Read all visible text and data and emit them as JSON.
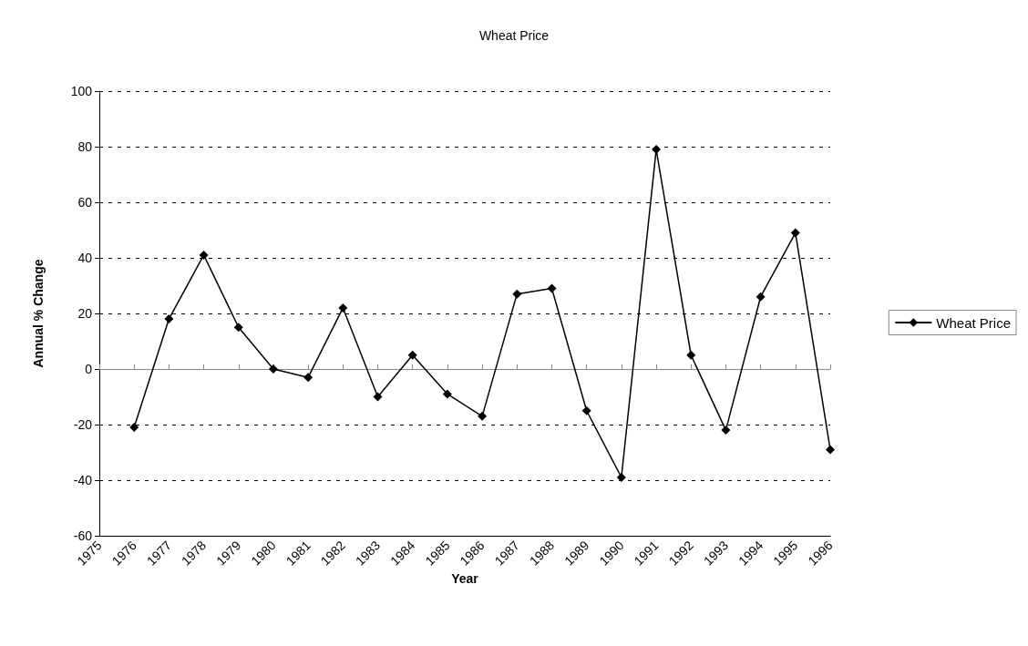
{
  "chart_data": {
    "type": "line",
    "title": "Wheat Price",
    "xlabel": "Year",
    "ylabel": "Annual % Change",
    "categories": [
      "1975",
      "1976",
      "1977",
      "1978",
      "1979",
      "1980",
      "1981",
      "1982",
      "1983",
      "1984",
      "1985",
      "1986",
      "1987",
      "1988",
      "1989",
      "1990",
      "1991",
      "1992",
      "1993",
      "1994",
      "1995",
      "1996"
    ],
    "series": [
      {
        "name": "Wheat Price",
        "color": "#000000",
        "values": [
          null,
          -21,
          18,
          41,
          15,
          0,
          -3,
          22,
          -10,
          5,
          -9,
          -17,
          27,
          29,
          -15,
          -39,
          79,
          5,
          -22,
          26,
          49,
          -29
        ]
      }
    ],
    "ylim": [
      -60,
      100
    ],
    "yticks": [
      -60,
      -40,
      -20,
      0,
      20,
      40,
      60,
      80,
      100
    ],
    "grid": "y",
    "legend": "right",
    "marker": "diamond",
    "line_style": "solid"
  }
}
